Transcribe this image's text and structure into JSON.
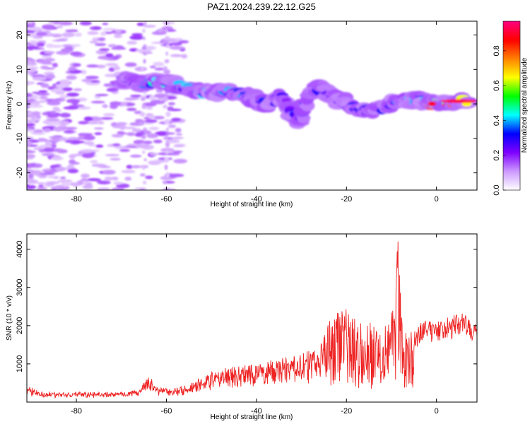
{
  "title": "PAZ1.2024.239.22.12.G25",
  "chart_data": [
    {
      "type": "heatmap",
      "xlabel": "Height of straight line (km)",
      "ylabel": "Frequency (Hz)",
      "xlim": [
        -91,
        9
      ],
      "ylim": [
        -25,
        24
      ],
      "x_ticks": [
        -80,
        -60,
        -40,
        -20,
        0
      ],
      "y_ticks": [
        -20,
        -10,
        0,
        10,
        20
      ],
      "colorbar": {
        "label": "Normalized spectral amplitude",
        "range": [
          0,
          0.97
        ],
        "ticks": [
          0.0,
          0.2,
          0.4,
          0.6,
          0.8
        ],
        "colors": [
          "#ffffff",
          "#cc99ff",
          "#7f00ff",
          "#0000ff",
          "#00ffff",
          "#00ff00",
          "#ffff00",
          "#ff8000",
          "#ff0000",
          "#ff0080"
        ]
      },
      "ridge": [
        {
          "x": -70,
          "y": 7,
          "a": 0.25
        },
        {
          "x": -66,
          "y": 6,
          "a": 0.3
        },
        {
          "x": -62,
          "y": 6.5,
          "a": 0.55
        },
        {
          "x": -58,
          "y": 5.5,
          "a": 0.45
        },
        {
          "x": -54,
          "y": 4,
          "a": 0.4
        },
        {
          "x": -50,
          "y": 3,
          "a": 0.45
        },
        {
          "x": -46,
          "y": 4,
          "a": 0.4
        },
        {
          "x": -42,
          "y": 2,
          "a": 0.4
        },
        {
          "x": -38,
          "y": 0,
          "a": 0.35
        },
        {
          "x": -34,
          "y": 2,
          "a": 0.3
        },
        {
          "x": -31,
          "y": -5,
          "a": 0.3
        },
        {
          "x": -27,
          "y": 5,
          "a": 0.3
        },
        {
          "x": -24,
          "y": 3,
          "a": 0.35
        },
        {
          "x": -20,
          "y": 0,
          "a": 0.35
        },
        {
          "x": -16,
          "y": -2,
          "a": 0.3
        },
        {
          "x": -12,
          "y": -1,
          "a": 0.3
        },
        {
          "x": -8,
          "y": 1,
          "a": 0.4
        },
        {
          "x": -4,
          "y": 1,
          "a": 0.55
        },
        {
          "x": -1,
          "y": 0,
          "a": 0.8
        },
        {
          "x": 3,
          "y": 0.8,
          "a": 0.9
        },
        {
          "x": 7,
          "y": 0.8,
          "a": 0.95
        }
      ]
    },
    {
      "type": "line",
      "xlabel": "Height of straight line (km)",
      "ylabel": "SNR (10 * v/v)",
      "xlim": [
        -91,
        9
      ],
      "ylim": [
        0,
        4400
      ],
      "x_ticks": [
        -80,
        -60,
        -40,
        -20,
        0
      ],
      "y_ticks": [
        1000,
        2000,
        3000,
        4000
      ],
      "color": "#ee2222",
      "envelope": [
        {
          "x": -91,
          "y": 350
        },
        {
          "x": -88,
          "y": 180
        },
        {
          "x": -80,
          "y": 170
        },
        {
          "x": -70,
          "y": 190
        },
        {
          "x": -66,
          "y": 250
        },
        {
          "x": -64,
          "y": 700
        },
        {
          "x": -62,
          "y": 300
        },
        {
          "x": -58,
          "y": 280
        },
        {
          "x": -54,
          "y": 450
        },
        {
          "x": -50,
          "y": 700
        },
        {
          "x": -46,
          "y": 850
        },
        {
          "x": -40,
          "y": 950
        },
        {
          "x": -35,
          "y": 1050
        },
        {
          "x": -30,
          "y": 1200
        },
        {
          "x": -26,
          "y": 1350
        },
        {
          "x": -24,
          "y": 2200
        },
        {
          "x": -21,
          "y": 2500
        },
        {
          "x": -18,
          "y": 2100
        },
        {
          "x": -14,
          "y": 2000
        },
        {
          "x": -11,
          "y": 2000
        },
        {
          "x": -9.5,
          "y": 2800
        },
        {
          "x": -8.5,
          "y": 4350
        },
        {
          "x": -7.5,
          "y": 1800
        },
        {
          "x": -5,
          "y": 1800
        },
        {
          "x": -3,
          "y": 2050
        },
        {
          "x": 0,
          "y": 2100
        },
        {
          "x": 3,
          "y": 2150
        },
        {
          "x": 6,
          "y": 2300
        },
        {
          "x": 9,
          "y": 1950
        }
      ]
    }
  ]
}
